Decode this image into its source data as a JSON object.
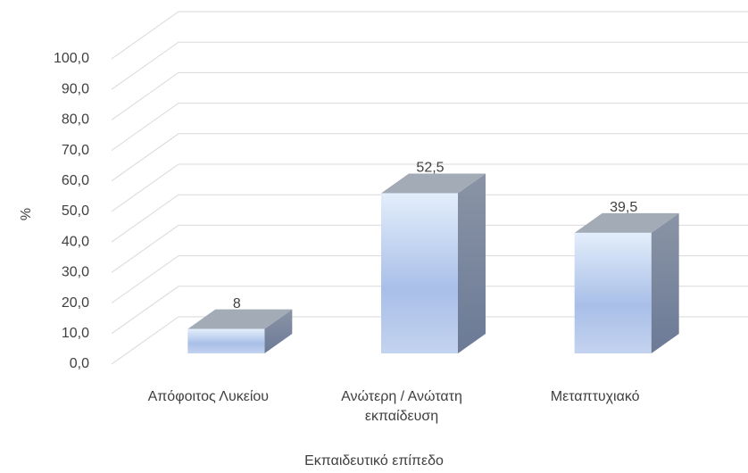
{
  "chart_data": {
    "type": "bar3d",
    "categories": [
      "Απόφοιτος Λυκείου",
      "Ανώτερη / Ανώτατη\nεκπαίδευση",
      "Μεταπτυχιακό"
    ],
    "values": [
      8,
      52.5,
      39.5
    ],
    "value_labels": [
      "8",
      "52,5",
      "39,5"
    ],
    "ylim": [
      0,
      100
    ],
    "yticks": [
      {
        "value": 0,
        "label": "0,0"
      },
      {
        "value": 10,
        "label": "10,0"
      },
      {
        "value": 20,
        "label": "20,0"
      },
      {
        "value": 30,
        "label": "30,0"
      },
      {
        "value": 40,
        "label": "40,0"
      },
      {
        "value": 50,
        "label": "50,0"
      },
      {
        "value": 60,
        "label": "60,0"
      },
      {
        "value": 70,
        "label": "70,0"
      },
      {
        "value": 80,
        "label": "80,0"
      },
      {
        "value": 90,
        "label": "90,0"
      },
      {
        "value": 100,
        "label": "100,0"
      }
    ],
    "ylabel": "%",
    "xlabel": "Εκπαιδευτικό επίπεδο",
    "grid": true
  }
}
